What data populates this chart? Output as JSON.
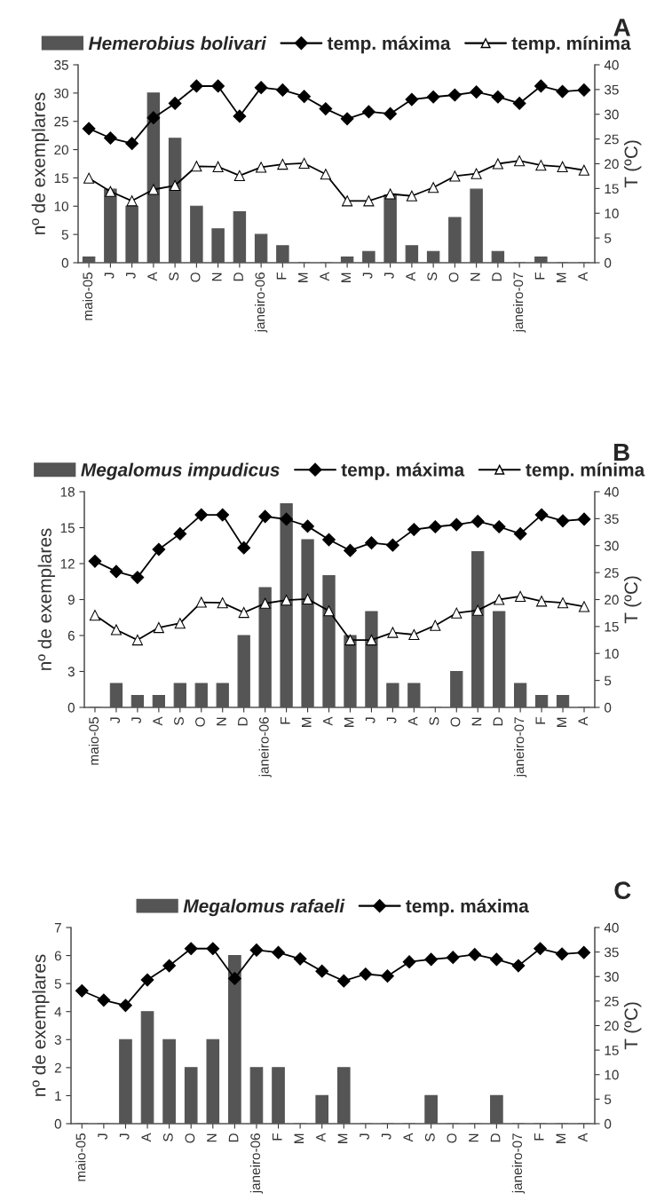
{
  "chart_data": [
    {
      "type": "bar",
      "annotations": [
        "A"
      ],
      "ylabel": "nº de exemplares",
      "y2label": "T (ºC)",
      "categories": [
        "maio-05",
        "J",
        "J",
        "A",
        "S",
        "O",
        "N",
        "D",
        "janeiro-06",
        "F",
        "M",
        "A",
        "M",
        "J",
        "J",
        "A",
        "S",
        "O",
        "N",
        "D",
        "janeiro-07",
        "F",
        "M",
        "A"
      ],
      "series": [
        {
          "name": "Hemerobius bolivari",
          "color": "#555555",
          "values": [
            1,
            13,
            10,
            30,
            22,
            10,
            6,
            9,
            5,
            3,
            0,
            0,
            1,
            2,
            12,
            3,
            2,
            8,
            13,
            2,
            0,
            1,
            0,
            0
          ]
        },
        {
          "name": "temp. máxima",
          "type": "line",
          "axis": "y2",
          "color": "#000000",
          "marker": "diamond",
          "values": [
            27.1,
            25.2,
            24.1,
            29.3,
            32.2,
            35.7,
            35.7,
            29.6,
            35.4,
            34.9,
            33.6,
            31.1,
            29.1,
            30.5,
            30.1,
            33.0,
            33.5,
            33.9,
            34.5,
            33.5,
            32.2,
            35.7,
            34.6,
            34.9
          ]
        },
        {
          "name": "temp. mínima",
          "type": "line",
          "axis": "y2",
          "color": "#000000",
          "marker": "triangle",
          "values": [
            17.1,
            14.4,
            12.5,
            14.8,
            15.6,
            19.5,
            19.4,
            17.6,
            19.3,
            19.9,
            20.1,
            17.9,
            12.5,
            12.5,
            13.9,
            13.5,
            15.2,
            17.5,
            18.0,
            20.0,
            20.6,
            19.7,
            19.4,
            18.7
          ]
        }
      ],
      "ylim": [
        0,
        35
      ],
      "yticks": [
        0,
        5,
        10,
        15,
        20,
        25,
        30,
        35
      ],
      "y2lim": [
        0,
        40
      ],
      "y2ticks": [
        0,
        5,
        10,
        15,
        20,
        25,
        30,
        35,
        40
      ],
      "legend": "top",
      "grid": false,
      "line_style": "solid"
    },
    {
      "type": "bar",
      "annotations": [
        "B"
      ],
      "ylabel": "nº de exemplares",
      "y2label": "T (ºC)",
      "categories": [
        "maio-05",
        "J",
        "J",
        "A",
        "S",
        "O",
        "N",
        "D",
        "janeiro-06",
        "F",
        "M",
        "A",
        "M",
        "J",
        "J",
        "A",
        "S",
        "O",
        "N",
        "D",
        "janeiro-07",
        "F",
        "M",
        "A"
      ],
      "series": [
        {
          "name": "Megalomus impudicus",
          "color": "#555555",
          "values": [
            0,
            2,
            1,
            1,
            2,
            2,
            2,
            6,
            10,
            17,
            14,
            11,
            6,
            8,
            2,
            2,
            0,
            3,
            13,
            8,
            2,
            1,
            1,
            0
          ]
        },
        {
          "name": "temp. máxima",
          "type": "line",
          "axis": "y2",
          "color": "#000000",
          "marker": "diamond",
          "values": [
            27.1,
            25.2,
            24.1,
            29.3,
            32.2,
            35.7,
            35.7,
            29.6,
            35.4,
            34.9,
            33.6,
            31.1,
            29.1,
            30.5,
            30.1,
            33.0,
            33.5,
            33.9,
            34.5,
            33.5,
            32.2,
            35.7,
            34.6,
            34.9
          ]
        },
        {
          "name": "temp. mínima",
          "type": "line",
          "axis": "y2",
          "color": "#000000",
          "marker": "triangle",
          "values": [
            17.1,
            14.4,
            12.5,
            14.8,
            15.6,
            19.5,
            19.4,
            17.6,
            19.3,
            19.9,
            20.1,
            17.9,
            12.5,
            12.5,
            13.9,
            13.5,
            15.2,
            17.5,
            18.0,
            20.0,
            20.6,
            19.7,
            19.4,
            18.7
          ]
        }
      ],
      "ylim": [
        0,
        18
      ],
      "yticks": [
        0,
        3,
        6,
        9,
        12,
        15,
        18
      ],
      "y2lim": [
        0,
        40
      ],
      "y2ticks": [
        0,
        5,
        10,
        15,
        20,
        25,
        30,
        35,
        40
      ],
      "legend": "top",
      "grid": false,
      "line_style": "solid"
    },
    {
      "type": "bar",
      "annotations": [
        "C"
      ],
      "ylabel": "nº de exemplares",
      "y2label": "T (ºC)",
      "categories": [
        "maio-05",
        "J",
        "J",
        "A",
        "S",
        "O",
        "N",
        "D",
        "janeiro-06",
        "F",
        "M",
        "A",
        "M",
        "J",
        "J",
        "A",
        "S",
        "O",
        "N",
        "D",
        "janeiro-07",
        "F",
        "M",
        "A"
      ],
      "series": [
        {
          "name": "Megalomus rafaeli",
          "color": "#555555",
          "values": [
            0,
            0,
            3,
            4,
            3,
            2,
            3,
            6,
            2,
            2,
            0,
            1,
            2,
            0,
            0,
            0,
            1,
            0,
            0,
            1,
            0,
            0,
            0,
            0
          ]
        },
        {
          "name": "temp. máxima",
          "type": "line",
          "axis": "y2",
          "color": "#000000",
          "marker": "diamond",
          "values": [
            27.1,
            25.2,
            24.1,
            29.3,
            32.2,
            35.7,
            35.7,
            29.6,
            35.4,
            34.9,
            33.6,
            31.1,
            29.1,
            30.5,
            30.1,
            33.0,
            33.5,
            33.9,
            34.5,
            33.5,
            32.2,
            35.7,
            34.6,
            34.9
          ]
        }
      ],
      "ylim": [
        0,
        7
      ],
      "yticks": [
        0,
        1,
        2,
        3,
        4,
        5,
        6,
        7
      ],
      "y2lim": [
        0,
        40
      ],
      "y2ticks": [
        0,
        5,
        10,
        15,
        20,
        25,
        30,
        35,
        40
      ],
      "legend": "top",
      "grid": false,
      "line_style": "solid"
    }
  ]
}
